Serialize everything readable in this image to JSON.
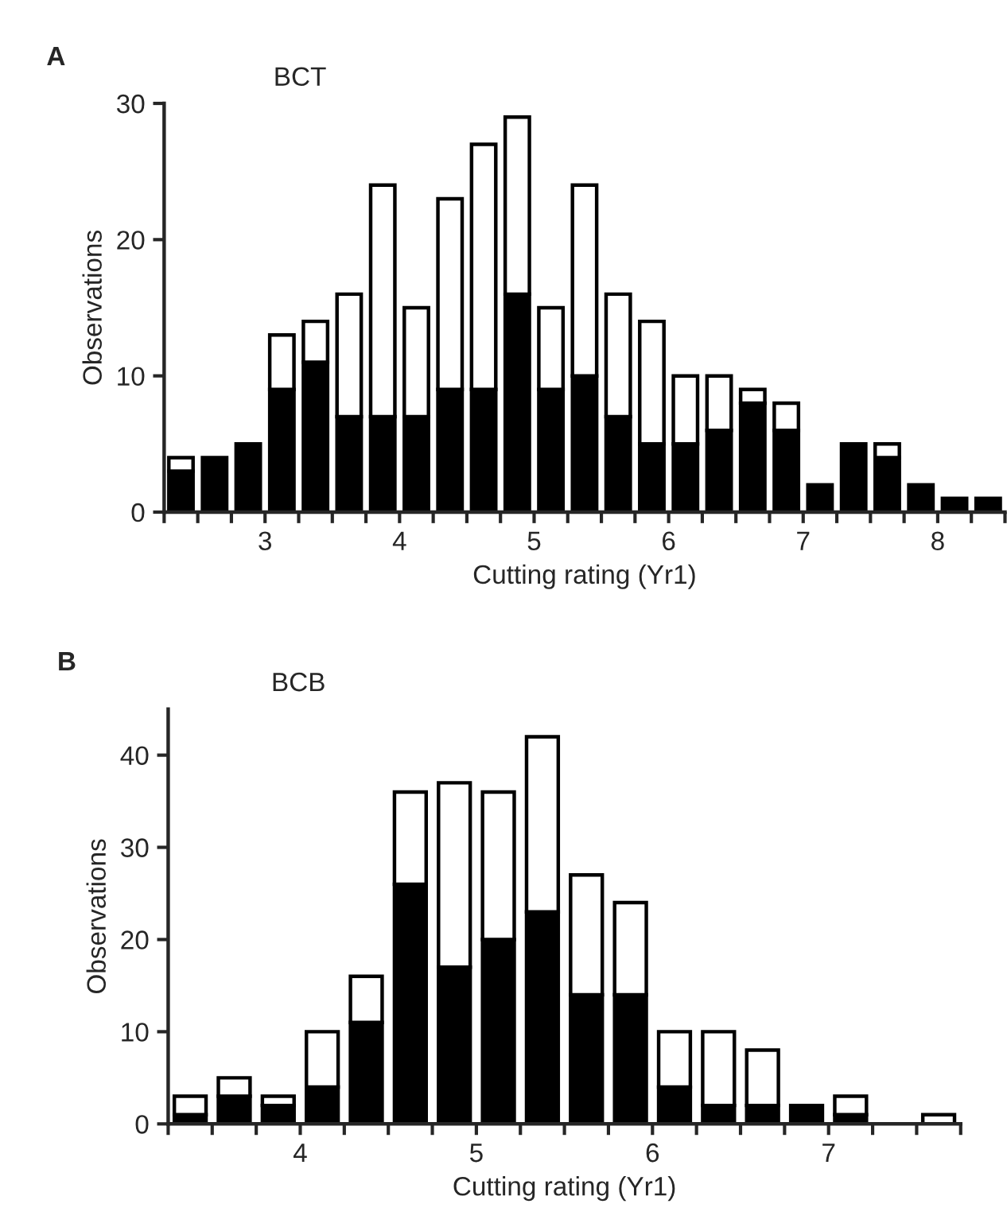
{
  "chart_data": [
    {
      "type": "bar",
      "stacked": true,
      "title": "BCT",
      "xlabel": "Cutting rating (Yr1)",
      "ylabel": "Observations",
      "annotations": [
        "A"
      ],
      "x": [
        2.375,
        2.625,
        2.875,
        3.125,
        3.375,
        3.625,
        3.875,
        4.125,
        4.375,
        4.625,
        4.875,
        5.125,
        5.375,
        5.625,
        5.875,
        6.125,
        6.375,
        6.625,
        6.875,
        7.125,
        7.375,
        7.625,
        7.875,
        8.125,
        8.375
      ],
      "series": [
        {
          "color": "#000000",
          "values": [
            3,
            4,
            5,
            9,
            11,
            7,
            7,
            7,
            9,
            9,
            16,
            9,
            10,
            7,
            5,
            5,
            6,
            8,
            6,
            2,
            5,
            4,
            2,
            1,
            1
          ]
        },
        {
          "color": "#ffffff",
          "values": [
            1,
            0,
            0,
            4,
            3,
            9,
            17,
            8,
            14,
            18,
            13,
            6,
            14,
            9,
            9,
            5,
            4,
            1,
            2,
            0,
            0,
            1,
            0,
            0,
            0
          ]
        }
      ],
      "xlim": [
        2.25,
        8.5
      ],
      "xticks": [
        {
          "value": 2.25,
          "label": null
        },
        {
          "value": 2.5,
          "label": null
        },
        {
          "value": 2.75,
          "label": null
        },
        3,
        {
          "value": 3.25,
          "label": null
        },
        {
          "value": 3.5,
          "label": null
        },
        {
          "value": 3.75,
          "label": null
        },
        4,
        {
          "value": 4.25,
          "label": null
        },
        {
          "value": 4.5,
          "label": null
        },
        {
          "value": 4.75,
          "label": null
        },
        5,
        {
          "value": 5.25,
          "label": null
        },
        {
          "value": 5.5,
          "label": null
        },
        {
          "value": 5.75,
          "label": null
        },
        6,
        {
          "value": 6.25,
          "label": null
        },
        {
          "value": 6.5,
          "label": null
        },
        {
          "value": 6.75,
          "label": null
        },
        7,
        {
          "value": 7.25,
          "label": null
        },
        {
          "value": 7.5,
          "label": null
        },
        {
          "value": 7.75,
          "label": null
        },
        8,
        {
          "value": 8.25,
          "label": null
        },
        {
          "value": 8.5,
          "label": null
        }
      ],
      "ylim": [
        0,
        30
      ],
      "yticks": [
        0,
        10,
        20,
        30
      ],
      "grid": false,
      "legend": false
    },
    {
      "type": "bar",
      "stacked": true,
      "title": "BCB",
      "xlabel": "Cutting rating (Yr1)",
      "ylabel": "Observations",
      "annotations": [
        "B"
      ],
      "x": [
        3.375,
        3.625,
        3.875,
        4.125,
        4.375,
        4.625,
        4.875,
        5.125,
        5.375,
        5.625,
        5.875,
        6.125,
        6.375,
        6.625,
        6.875,
        7.125,
        7.375,
        7.625
      ],
      "series": [
        {
          "color": "#000000",
          "values": [
            1,
            3,
            2,
            4,
            11,
            26,
            17,
            20,
            23,
            14,
            14,
            4,
            2,
            2,
            2,
            1,
            0,
            0
          ]
        },
        {
          "color": "#ffffff",
          "values": [
            2,
            2,
            1,
            6,
            5,
            10,
            20,
            16,
            19,
            13,
            10,
            6,
            8,
            6,
            0,
            2,
            0,
            1
          ]
        }
      ],
      "xlim": [
        3.25,
        7.75
      ],
      "xticks": [
        {
          "value": 3.25,
          "label": null
        },
        {
          "value": 3.5,
          "label": null
        },
        {
          "value": 3.75,
          "label": null
        },
        4,
        {
          "value": 4.25,
          "label": null
        },
        {
          "value": 4.5,
          "label": null
        },
        {
          "value": 4.75,
          "label": null
        },
        5,
        {
          "value": 5.25,
          "label": null
        },
        {
          "value": 5.5,
          "label": null
        },
        {
          "value": 5.75,
          "label": null
        },
        6,
        {
          "value": 6.25,
          "label": null
        },
        {
          "value": 6.5,
          "label": null
        },
        {
          "value": 6.75,
          "label": null
        },
        7,
        {
          "value": 7.25,
          "label": null
        },
        {
          "value": 7.5,
          "label": null
        },
        {
          "value": 7.75,
          "label": null
        }
      ],
      "ylim": [
        0,
        45
      ],
      "yticks": [
        0,
        10,
        20,
        30,
        40
      ],
      "grid": false,
      "legend": false
    }
  ]
}
